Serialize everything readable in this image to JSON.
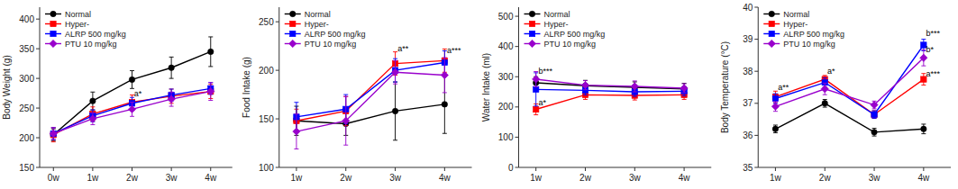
{
  "chart_data": [
    {
      "type": "line",
      "ylabel": "Body Weight (g)",
      "categories": [
        "0w",
        "1w",
        "2w",
        "3w",
        "4w"
      ],
      "ylim": [
        150,
        420
      ],
      "yticks": [
        150,
        200,
        250,
        300,
        350,
        400
      ],
      "legend": "upper left",
      "grid": false,
      "series": [
        {
          "name": "Normal",
          "color": "#000000",
          "marker": "circle",
          "values": [
            205,
            262,
            298,
            318,
            345
          ],
          "errors": [
            10,
            15,
            15,
            18,
            25
          ]
        },
        {
          "name": "Hyper-",
          "color": "#ff0000",
          "marker": "square",
          "values": [
            205,
            240,
            260,
            270,
            278
          ],
          "errors": [
            12,
            12,
            12,
            12,
            12
          ]
        },
        {
          "name": "ALRP 500 mg/kg",
          "color": "#0000ff",
          "marker": "square",
          "values": [
            207,
            237,
            258,
            272,
            283
          ],
          "errors": [
            10,
            10,
            10,
            10,
            10
          ]
        },
        {
          "name": "PTU 10 mg/kg",
          "color": "#9900cc",
          "marker": "diamond",
          "values": [
            207,
            232,
            248,
            265,
            278
          ],
          "errors": [
            10,
            10,
            12,
            12,
            15
          ]
        }
      ],
      "annotations": [
        {
          "text": "a*",
          "x": 2.05,
          "y": 270
        }
      ]
    },
    {
      "type": "line",
      "ylabel": "Food Intake (g)",
      "categories": [
        "1w",
        "2w",
        "3w",
        "4w"
      ],
      "ylim": [
        100,
        265
      ],
      "yticks": [
        100,
        150,
        200,
        250
      ],
      "legend": "upper left",
      "grid": false,
      "series": [
        {
          "name": "Normal",
          "color": "#000000",
          "marker": "circle",
          "values": [
            148,
            145,
            158,
            165
          ],
          "errors": [
            15,
            12,
            30,
            30
          ]
        },
        {
          "name": "Hyper-",
          "color": "#ff0000",
          "marker": "square",
          "values": [
            148,
            158,
            207,
            210
          ],
          "errors": [
            12,
            15,
            12,
            12
          ]
        },
        {
          "name": "ALRP 500 mg/kg",
          "color": "#0000ff",
          "marker": "square",
          "values": [
            152,
            160,
            200,
            208
          ],
          "errors": [
            15,
            15,
            12,
            12
          ]
        },
        {
          "name": "PTU 10 mg/kg",
          "color": "#9900cc",
          "marker": "diamond",
          "values": [
            137,
            148,
            198,
            195
          ],
          "errors": [
            18,
            25,
            12,
            18
          ]
        }
      ],
      "annotations": [
        {
          "text": "a**",
          "x": 2.05,
          "y": 220
        },
        {
          "text": "a***",
          "x": 3.05,
          "y": 218
        }
      ]
    },
    {
      "type": "line",
      "ylabel": "Water Intake (ml)",
      "categories": [
        "1w",
        "2w",
        "3w",
        "4w"
      ],
      "ylim": [
        0,
        530
      ],
      "yticks": [
        0,
        100,
        200,
        300,
        400,
        500
      ],
      "legend": "upper left",
      "grid": false,
      "series": [
        {
          "name": "Normal",
          "color": "#000000",
          "marker": "circle",
          "values": [
            280,
            270,
            265,
            260
          ],
          "errors": [
            20,
            18,
            18,
            18
          ]
        },
        {
          "name": "Hyper-",
          "color": "#ff0000",
          "marker": "square",
          "values": [
            192,
            240,
            238,
            240
          ],
          "errors": [
            18,
            15,
            15,
            15
          ]
        },
        {
          "name": "ALRP 500 mg/kg",
          "color": "#0000ff",
          "marker": "square",
          "values": [
            258,
            255,
            250,
            252
          ],
          "errors": [
            55,
            15,
            15,
            15
          ]
        },
        {
          "name": "PTU 10 mg/kg",
          "color": "#9900cc",
          "marker": "diamond",
          "values": [
            292,
            272,
            268,
            262
          ],
          "errors": [
            25,
            15,
            18,
            15
          ]
        }
      ],
      "annotations": [
        {
          "text": "a*",
          "x": 0.05,
          "y": 205
        },
        {
          "text": "b***",
          "x": 0.05,
          "y": 310
        }
      ]
    },
    {
      "type": "line",
      "ylabel": "Body Temperature (°C)",
      "categories": [
        "1w",
        "2w",
        "3w",
        "4w"
      ],
      "ylim": [
        35,
        40
      ],
      "yticks": [
        35,
        36,
        37,
        38,
        39,
        40
      ],
      "legend": "upper left",
      "grid": false,
      "series": [
        {
          "name": "Normal",
          "color": "#000000",
          "marker": "circle",
          "values": [
            36.2,
            37.0,
            36.1,
            36.2
          ],
          "errors": [
            0.12,
            0.12,
            0.12,
            0.15
          ]
        },
        {
          "name": "Hyper-",
          "color": "#ff0000",
          "marker": "square",
          "values": [
            37.2,
            37.75,
            36.65,
            37.75
          ],
          "errors": [
            0.18,
            0.12,
            0.12,
            0.18
          ]
        },
        {
          "name": "ALRP 500 mg/kg",
          "color": "#0000ff",
          "marker": "square",
          "values": [
            37.15,
            37.65,
            36.65,
            38.82
          ],
          "errors": [
            0.15,
            0.15,
            0.12,
            0.18
          ]
        },
        {
          "name": "PTU 10 mg/kg",
          "color": "#9900cc",
          "marker": "diamond",
          "values": [
            36.9,
            37.45,
            36.95,
            38.42
          ],
          "errors": [
            0.15,
            0.18,
            0.12,
            0.25
          ]
        }
      ],
      "annotations": [
        {
          "text": "a**",
          "x": 0.05,
          "y": 37.42
        },
        {
          "text": "a*",
          "x": 1.05,
          "y": 37.92
        },
        {
          "text": "a***",
          "x": 3.05,
          "y": 37.85
        },
        {
          "text": "b*",
          "x": 3.05,
          "y": 38.6
        },
        {
          "text": "b***",
          "x": 3.05,
          "y": 39.1
        }
      ]
    }
  ]
}
